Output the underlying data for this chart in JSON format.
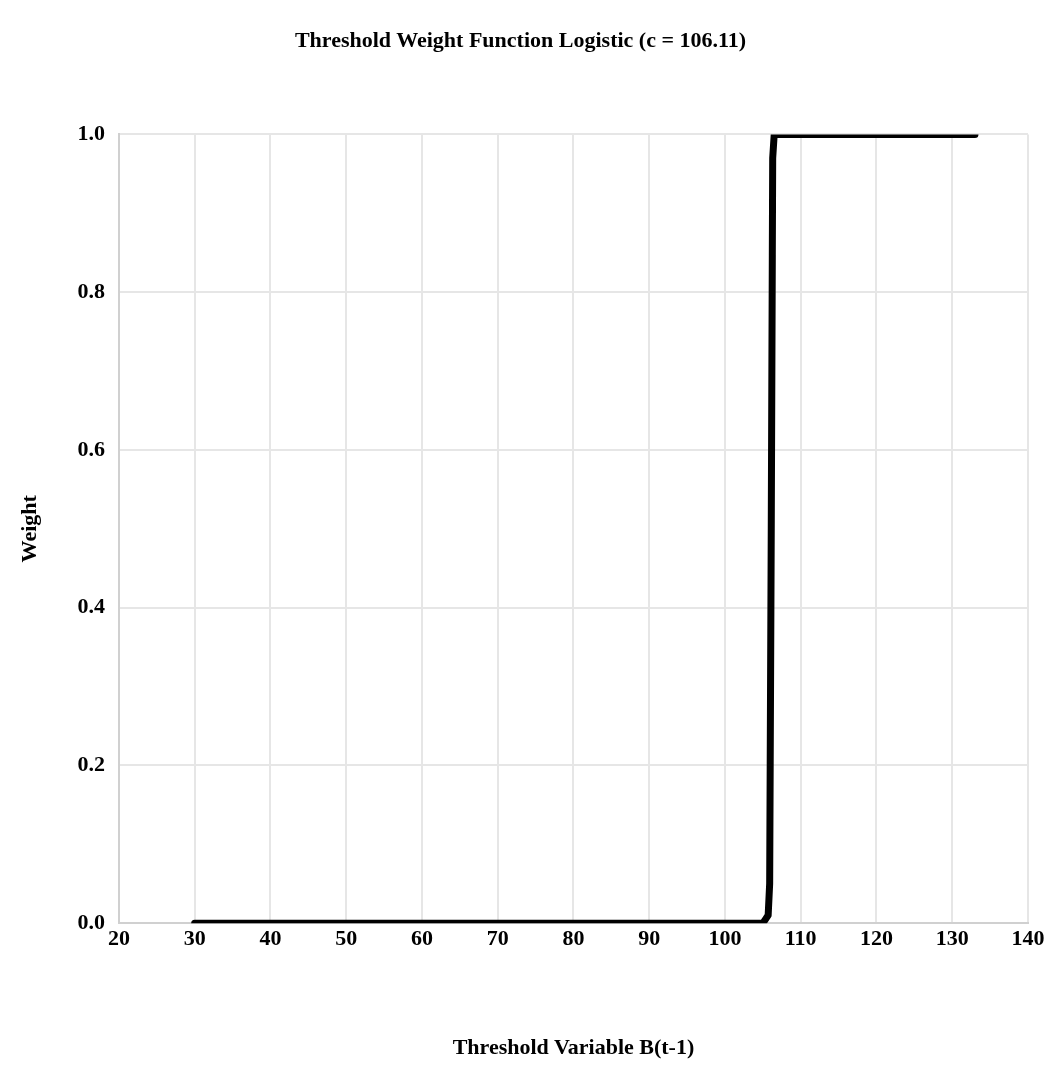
{
  "chart_data": {
    "type": "line",
    "title": "Threshold Weight Function Logistic (c = 106.11)",
    "xlabel": "Threshold Variable B(t-1)",
    "ylabel": "Weight",
    "x": [
      30,
      40,
      50,
      60,
      70,
      80,
      90,
      100,
      105,
      105.7,
      105.9,
      106.11,
      106.3,
      106.5,
      110,
      120,
      130,
      133
    ],
    "series": [
      {
        "color": "#000000",
        "values": [
          0,
          0,
          0,
          0,
          0,
          0,
          0,
          0,
          0,
          0.01,
          0.05,
          0.5,
          0.97,
          1,
          1,
          1,
          1,
          1
        ]
      }
    ],
    "xlim": [
      20,
      140
    ],
    "xticks": [
      20,
      30,
      40,
      50,
      60,
      70,
      80,
      90,
      100,
      110,
      120,
      130,
      140
    ],
    "ylim": [
      0,
      1
    ],
    "yticks": [
      {
        "value": 0,
        "label": "0.0"
      },
      {
        "value": 0.2,
        "label": "0.2"
      },
      {
        "value": 0.4,
        "label": "0.4"
      },
      {
        "value": 0.6,
        "label": "0.6"
      },
      {
        "value": 0.8,
        "label": "0.8"
      },
      {
        "value": 1,
        "label": "1.0"
      }
    ],
    "grid": true,
    "legend": false,
    "marker": "none",
    "line_style": "solid"
  }
}
